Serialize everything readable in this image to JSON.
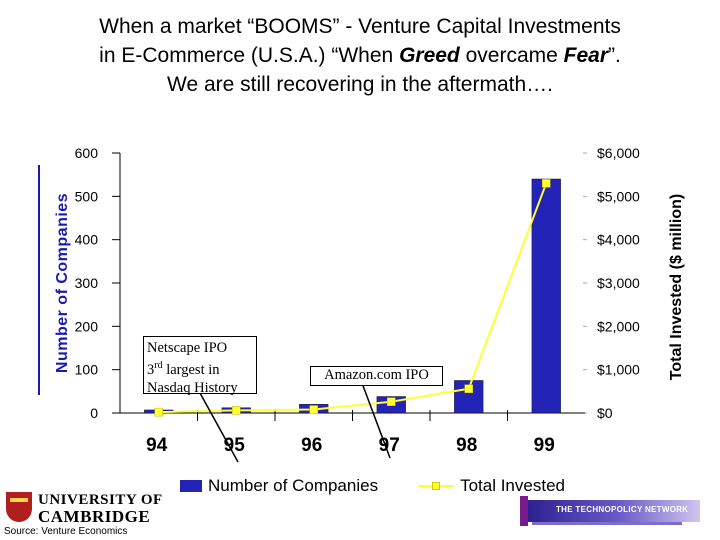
{
  "title": {
    "line1": "When a market “BOOMS” - Venture Capital Investments",
    "line2_pre": "in E-Commerce (U.S.A.) “When ",
    "line2_greed": "Greed",
    "line2_mid": " overcame ",
    "line2_fear": "Fear",
    "line2_post": "”.",
    "line3": "We are still recovering in the aftermath…."
  },
  "chart_data": {
    "type": "bar",
    "categories": [
      "94",
      "95",
      "96",
      "97",
      "98",
      "99"
    ],
    "series": [
      {
        "name": "Number of Companies",
        "kind": "bar",
        "axis": "left",
        "values": [
          7,
          12,
          20,
          38,
          75,
          540
        ]
      },
      {
        "name": "Total Invested",
        "kind": "line",
        "axis": "right",
        "values": [
          20,
          60,
          80,
          260,
          560,
          5300
        ]
      }
    ],
    "ylabel": "Number of Companies",
    "y2label": "Total Invested ($ million)",
    "ylim": [
      0,
      600
    ],
    "y2lim": [
      0,
      6000
    ],
    "yticks": [
      "0",
      "100",
      "200",
      "300",
      "400",
      "500",
      "600"
    ],
    "y2ticks": [
      "$0",
      "$1,000",
      "$2,000",
      "$3,000",
      "$4,000",
      "$5,000",
      "$6,000"
    ],
    "bar_color": "#2323b8",
    "line_color": "#ffff33",
    "annotations": [
      {
        "lines": [
          "Netscape IPO",
          "3rd largest in",
          "Nasdaq History"
        ],
        "points_to": "95"
      },
      {
        "lines": [
          "Amazon.com IPO"
        ],
        "points_to": "97"
      }
    ],
    "legend_position": "bottom"
  },
  "legend": {
    "bar_label": "Number of Companies",
    "line_label": "Total Invested"
  },
  "logos": {
    "cambridge_line1": "UNIVERSITY OF",
    "cambridge_line2": "CAMBRIDGE",
    "tech_network": "THE TECHNOPOLICY NETWORK"
  },
  "source": "Source: Venture Economics"
}
